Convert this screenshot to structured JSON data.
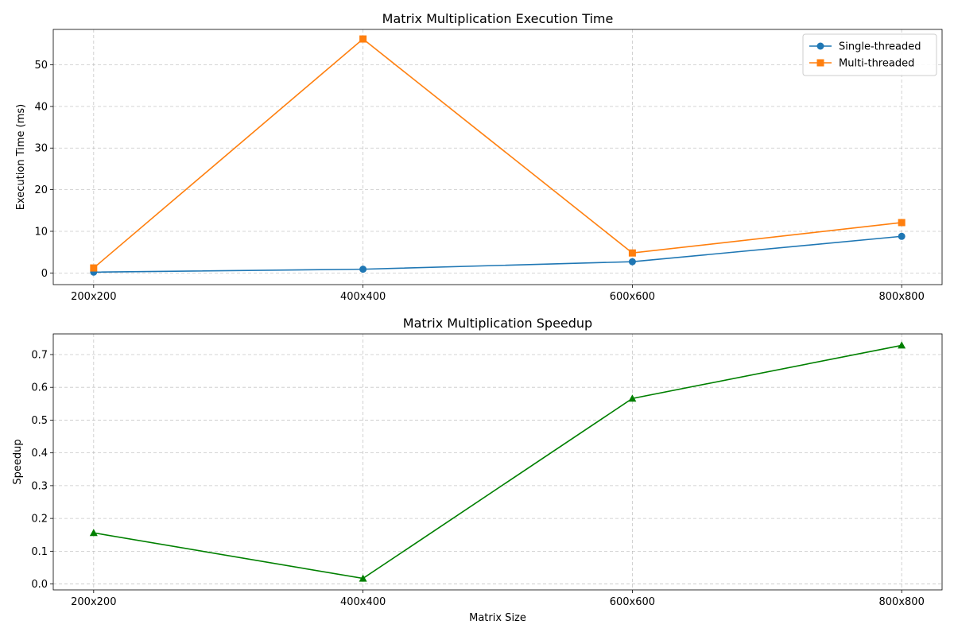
{
  "chart_data": [
    {
      "type": "line",
      "title": "Matrix Multiplication Execution Time",
      "xlabel": "",
      "ylabel": "Execution Time (ms)",
      "categories": [
        "200x200",
        "400x400",
        "600x600",
        "800x800"
      ],
      "ylim": [
        -2.8,
        58.5
      ],
      "yticks": [
        0,
        10,
        20,
        30,
        40,
        50
      ],
      "grid": true,
      "legend_position": "top-right",
      "series": [
        {
          "name": "Single-threaded",
          "values": [
            0.2,
            0.9,
            2.7,
            8.8
          ],
          "color": "#1f77b4",
          "marker": "circle"
        },
        {
          "name": "Multi-threaded",
          "values": [
            1.2,
            56.2,
            4.8,
            12.1
          ],
          "color": "#ff7f0e",
          "marker": "square"
        }
      ]
    },
    {
      "type": "line",
      "title": "Matrix Multiplication Speedup",
      "xlabel": "Matrix Size",
      "ylabel": "Speedup",
      "categories": [
        "200x200",
        "400x400",
        "600x600",
        "800x800"
      ],
      "ylim": [
        -0.018,
        0.763
      ],
      "yticks": [
        0.0,
        0.1,
        0.2,
        0.3,
        0.4,
        0.5,
        0.6,
        0.7
      ],
      "grid": true,
      "series": [
        {
          "values": [
            0.156,
            0.017,
            0.566,
            0.728
          ],
          "color": "#008000",
          "marker": "triangle"
        }
      ]
    }
  ]
}
